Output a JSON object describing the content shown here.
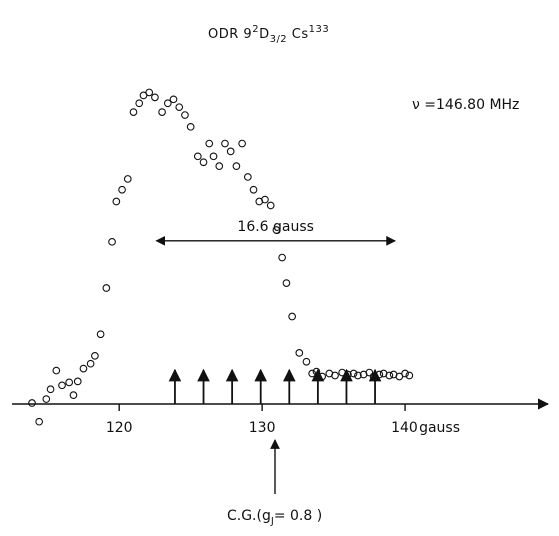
{
  "chart_data": {
    "type": "scatter",
    "title": {
      "prefix": "ODR  9",
      "sup1": "2",
      "mid": "D",
      "sub": "3/2",
      "after": " Cs",
      "sup2": "133"
    },
    "xlabel": "gauss",
    "xlim": [
      112.5,
      150
    ],
    "ylim": [
      -2,
      35
    ],
    "xticks": [
      120,
      130,
      140
    ],
    "xtick_labels": [
      "120",
      "130",
      "140"
    ],
    "x": [
      113.9,
      114.4,
      114.9,
      115.2,
      115.6,
      116.0,
      116.5,
      116.8,
      117.1,
      117.5,
      118.0,
      118.3,
      118.7,
      119.1,
      119.5,
      119.8,
      120.2,
      120.6,
      121.0,
      121.4,
      121.7,
      122.1,
      122.5,
      123.0,
      123.4,
      123.8,
      124.2,
      124.6,
      125.0,
      125.5,
      125.9,
      126.3,
      126.6,
      127.0,
      127.4,
      127.8,
      128.2,
      128.6,
      129.0,
      129.4,
      129.8,
      130.2,
      130.6,
      131.0,
      131.4,
      131.7,
      132.1,
      132.6,
      133.1,
      133.5,
      133.8,
      134.2,
      134.7,
      135.1,
      135.6,
      136.0,
      136.4,
      136.7,
      137.1,
      137.5,
      137.8,
      138.2,
      138.5,
      138.9,
      139.2,
      139.6,
      140.0,
      140.3
    ],
    "y": [
      0.1,
      -1.8,
      0.5,
      1.5,
      3.4,
      1.9,
      2.2,
      0.9,
      2.3,
      3.6,
      4.1,
      4.9,
      7.1,
      11.8,
      16.5,
      20.6,
      21.8,
      22.9,
      29.7,
      30.6,
      31.4,
      31.7,
      31.2,
      29.7,
      30.6,
      31.0,
      30.2,
      29.4,
      28.2,
      25.2,
      24.6,
      26.5,
      25.2,
      24.2,
      26.5,
      25.7,
      24.2,
      26.5,
      23.1,
      21.8,
      20.6,
      20.8,
      20.2,
      17.7,
      14.9,
      12.3,
      8.9,
      5.2,
      4.3,
      3.1,
      3.3,
      2.8,
      3.1,
      2.9,
      3.2,
      3.0,
      3.1,
      2.9,
      3.0,
      3.2,
      2.8,
      3.0,
      3.1,
      2.9,
      3.0,
      2.8,
      3.1,
      2.9
    ],
    "arrows_up": [
      123.9,
      125.9,
      127.9,
      129.9,
      131.9,
      133.9,
      135.9,
      137.9
    ],
    "cg_arrow_x": 130.9,
    "cg_label": "C.G.(g",
    "cg_sub": "J",
    "cg_after": "= 0.8 )",
    "width_label": "16.6 gauss",
    "width_from": 122.6,
    "width_to": 139.3,
    "width_y": 16.6,
    "freq_label": "ν =146.80 MHz"
  }
}
